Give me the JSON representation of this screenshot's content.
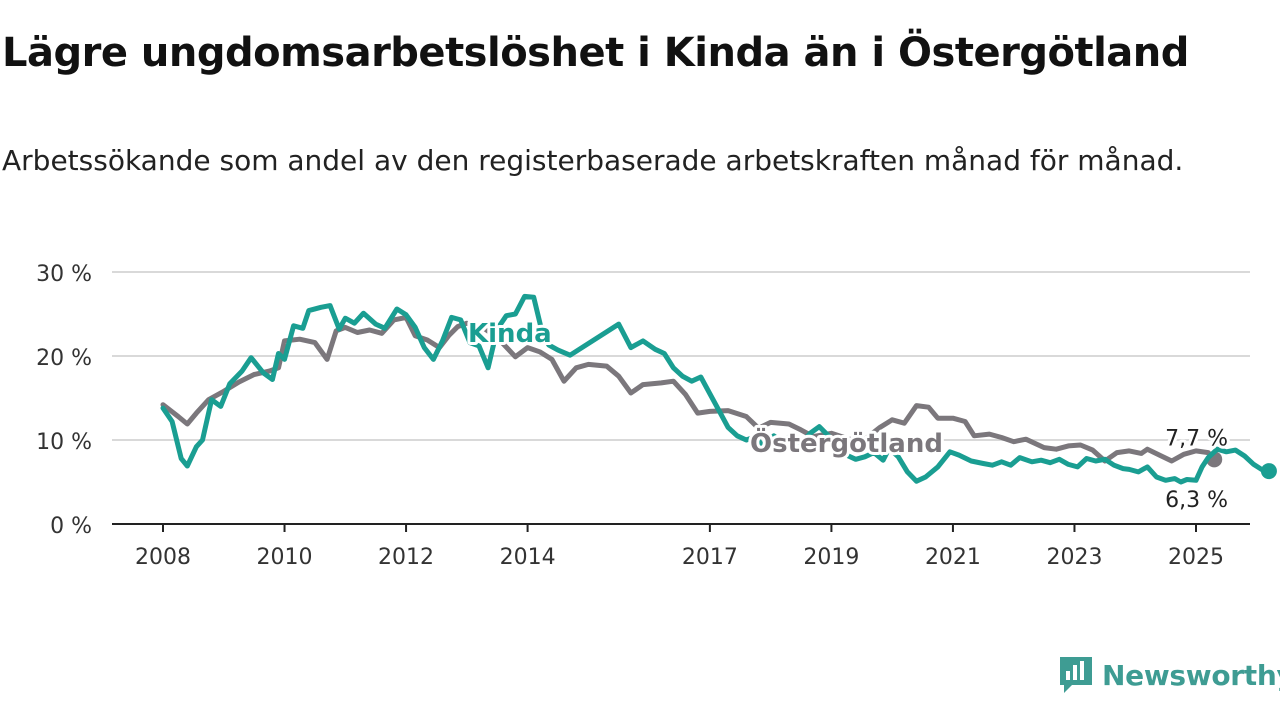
{
  "header": {
    "title": "Lägre ungdomsarbetslöshet i Kinda än i Östergötland",
    "subtitle": "Arbetssökande som andel av den registerbaserade arbetskraften månad för månad."
  },
  "brand": {
    "name": "Newsworthy",
    "icon": "chart-badge-icon",
    "color": "#3e9c93"
  },
  "chart_data": {
    "type": "line",
    "ylim": [
      0,
      30
    ],
    "xlim": [
      2007.85,
      2026.25
    ],
    "y_ticks": [
      0,
      10,
      20,
      30
    ],
    "y_tick_labels": [
      "0 %",
      "10 %",
      "20 %",
      "30 %"
    ],
    "x_ticks": [
      2008,
      2010,
      2012,
      2014,
      2017,
      2019,
      2021,
      2023,
      2025
    ],
    "x_tick_labels": [
      "2008",
      "2010",
      "2012",
      "2014",
      "2017",
      "2019",
      "2021",
      "2023",
      "2025"
    ],
    "grid": true,
    "series": [
      {
        "name": "Östergötland",
        "color": "#7b777c",
        "end_label": "7,7 %",
        "points": [
          [
            2008.0,
            14.2
          ],
          [
            2008.25,
            12.8
          ],
          [
            2008.4,
            11.9
          ],
          [
            2008.55,
            13.2
          ],
          [
            2008.75,
            14.8
          ],
          [
            2009.0,
            15.8
          ],
          [
            2009.25,
            16.9
          ],
          [
            2009.5,
            17.8
          ],
          [
            2009.75,
            18.2
          ],
          [
            2009.9,
            18.6
          ],
          [
            2010.0,
            21.8
          ],
          [
            2010.25,
            22.0
          ],
          [
            2010.5,
            21.6
          ],
          [
            2010.7,
            19.6
          ],
          [
            2010.85,
            23.0
          ],
          [
            2011.0,
            23.4
          ],
          [
            2011.2,
            22.8
          ],
          [
            2011.4,
            23.1
          ],
          [
            2011.6,
            22.7
          ],
          [
            2011.8,
            24.3
          ],
          [
            2012.0,
            24.6
          ],
          [
            2012.15,
            22.4
          ],
          [
            2012.35,
            21.9
          ],
          [
            2012.55,
            21.0
          ],
          [
            2012.7,
            22.4
          ],
          [
            2012.85,
            23.5
          ],
          [
            2013.0,
            23.9
          ],
          [
            2013.3,
            23.2
          ],
          [
            2013.5,
            22.2
          ],
          [
            2013.8,
            19.9
          ],
          [
            2014.0,
            21.0
          ],
          [
            2014.2,
            20.5
          ],
          [
            2014.4,
            19.6
          ],
          [
            2014.6,
            17.0
          ],
          [
            2014.8,
            18.6
          ],
          [
            2015.0,
            19.0
          ],
          [
            2015.3,
            18.8
          ],
          [
            2015.5,
            17.6
          ],
          [
            2015.7,
            15.6
          ],
          [
            2015.9,
            16.6
          ],
          [
            2016.2,
            16.8
          ],
          [
            2016.4,
            17.0
          ],
          [
            2016.6,
            15.4
          ],
          [
            2016.8,
            13.2
          ],
          [
            2017.0,
            13.4
          ],
          [
            2017.3,
            13.5
          ],
          [
            2017.6,
            12.8
          ],
          [
            2017.8,
            11.4
          ],
          [
            2018.0,
            12.1
          ],
          [
            2018.3,
            11.9
          ],
          [
            2018.5,
            11.2
          ],
          [
            2018.7,
            10.4
          ],
          [
            2019.0,
            10.8
          ],
          [
            2019.3,
            10.1
          ],
          [
            2019.5,
            9.8
          ],
          [
            2019.8,
            11.5
          ],
          [
            2020.0,
            12.4
          ],
          [
            2020.2,
            12.0
          ],
          [
            2020.4,
            14.1
          ],
          [
            2020.6,
            13.9
          ],
          [
            2020.75,
            12.6
          ],
          [
            2021.0,
            12.6
          ],
          [
            2021.2,
            12.2
          ],
          [
            2021.35,
            10.5
          ],
          [
            2021.6,
            10.7
          ],
          [
            2021.8,
            10.3
          ],
          [
            2022.0,
            9.8
          ],
          [
            2022.2,
            10.1
          ],
          [
            2022.5,
            9.1
          ],
          [
            2022.7,
            8.9
          ],
          [
            2022.9,
            9.3
          ],
          [
            2023.1,
            9.4
          ],
          [
            2023.3,
            8.8
          ],
          [
            2023.5,
            7.5
          ],
          [
            2023.7,
            8.5
          ],
          [
            2023.9,
            8.7
          ],
          [
            2024.1,
            8.4
          ],
          [
            2024.2,
            8.9
          ],
          [
            2024.4,
            8.2
          ],
          [
            2024.6,
            7.5
          ],
          [
            2024.8,
            8.3
          ],
          [
            2025.0,
            8.7
          ],
          [
            2025.2,
            8.5
          ],
          [
            2025.3,
            7.7
          ]
        ]
      },
      {
        "name": "Kinda",
        "color": "#1a9e92",
        "end_label": "6,3 %",
        "points": [
          [
            2008.0,
            13.8
          ],
          [
            2008.15,
            12.2
          ],
          [
            2008.3,
            7.8
          ],
          [
            2008.4,
            6.9
          ],
          [
            2008.55,
            9.2
          ],
          [
            2008.65,
            10.0
          ],
          [
            2008.8,
            14.8
          ],
          [
            2008.95,
            14.0
          ],
          [
            2009.1,
            16.7
          ],
          [
            2009.3,
            18.2
          ],
          [
            2009.45,
            19.8
          ],
          [
            2009.65,
            18.0
          ],
          [
            2009.8,
            17.2
          ],
          [
            2009.9,
            20.3
          ],
          [
            2010.0,
            19.6
          ],
          [
            2010.15,
            23.6
          ],
          [
            2010.3,
            23.3
          ],
          [
            2010.4,
            25.4
          ],
          [
            2010.6,
            25.8
          ],
          [
            2010.75,
            26.0
          ],
          [
            2010.9,
            23.2
          ],
          [
            2011.0,
            24.5
          ],
          [
            2011.15,
            23.9
          ],
          [
            2011.3,
            25.1
          ],
          [
            2011.5,
            23.8
          ],
          [
            2011.65,
            23.3
          ],
          [
            2011.85,
            25.6
          ],
          [
            2012.0,
            24.9
          ],
          [
            2012.15,
            23.4
          ],
          [
            2012.3,
            21.0
          ],
          [
            2012.45,
            19.6
          ],
          [
            2012.6,
            21.8
          ],
          [
            2012.75,
            24.6
          ],
          [
            2012.9,
            24.3
          ],
          [
            2013.05,
            21.6
          ],
          [
            2013.2,
            21.2
          ],
          [
            2013.35,
            18.6
          ],
          [
            2013.5,
            23.2
          ],
          [
            2013.65,
            24.8
          ],
          [
            2013.8,
            25.0
          ],
          [
            2013.95,
            27.1
          ],
          [
            2014.1,
            27.0
          ],
          [
            2014.25,
            22.5
          ],
          [
            2014.35,
            21.3
          ],
          [
            2014.5,
            20.7
          ],
          [
            2014.7,
            20.1
          ],
          [
            2015.5,
            23.8
          ],
          [
            2015.7,
            21.0
          ],
          [
            2015.9,
            21.8
          ],
          [
            2016.1,
            20.8
          ],
          [
            2016.25,
            20.3
          ],
          [
            2016.4,
            18.6
          ],
          [
            2016.55,
            17.6
          ],
          [
            2016.7,
            17.0
          ],
          [
            2016.85,
            17.5
          ],
          [
            2017.0,
            15.5
          ],
          [
            2017.15,
            13.5
          ],
          [
            2017.3,
            11.5
          ],
          [
            2017.45,
            10.5
          ],
          [
            2017.6,
            10.0
          ],
          [
            2017.75,
            10.4
          ],
          [
            2017.9,
            9.0
          ],
          [
            2018.05,
            10.5
          ],
          [
            2018.2,
            9.7
          ],
          [
            2018.35,
            10.7
          ],
          [
            2018.5,
            9.5
          ],
          [
            2018.65,
            10.8
          ],
          [
            2018.8,
            11.6
          ],
          [
            2018.95,
            10.5
          ],
          [
            2019.1,
            9.5
          ],
          [
            2019.25,
            8.2
          ],
          [
            2019.4,
            7.7
          ],
          [
            2019.55,
            8.0
          ],
          [
            2019.7,
            8.5
          ],
          [
            2019.85,
            7.6
          ],
          [
            2019.95,
            9.0
          ],
          [
            2020.1,
            8.0
          ],
          [
            2020.25,
            6.2
          ],
          [
            2020.4,
            5.1
          ],
          [
            2020.55,
            5.6
          ],
          [
            2020.75,
            6.8
          ],
          [
            2020.95,
            8.6
          ],
          [
            2021.1,
            8.2
          ],
          [
            2021.3,
            7.5
          ],
          [
            2021.5,
            7.2
          ],
          [
            2021.65,
            7.0
          ],
          [
            2021.8,
            7.4
          ],
          [
            2021.95,
            7.0
          ],
          [
            2022.1,
            7.9
          ],
          [
            2022.3,
            7.4
          ],
          [
            2022.45,
            7.6
          ],
          [
            2022.6,
            7.3
          ],
          [
            2022.75,
            7.7
          ],
          [
            2022.9,
            7.1
          ],
          [
            2023.05,
            6.8
          ],
          [
            2023.2,
            7.8
          ],
          [
            2023.35,
            7.5
          ],
          [
            2023.5,
            7.7
          ],
          [
            2023.65,
            7.0
          ],
          [
            2023.8,
            6.6
          ],
          [
            2023.9,
            6.5
          ],
          [
            2024.05,
            6.2
          ],
          [
            2024.2,
            6.8
          ],
          [
            2024.35,
            5.6
          ],
          [
            2024.5,
            5.2
          ],
          [
            2024.65,
            5.4
          ],
          [
            2024.75,
            5.0
          ],
          [
            2024.85,
            5.3
          ],
          [
            2025.0,
            5.2
          ],
          [
            2025.1,
            6.8
          ],
          [
            2025.2,
            7.9
          ],
          [
            2025.35,
            8.9
          ],
          [
            2025.5,
            8.6
          ],
          [
            2025.65,
            8.8
          ],
          [
            2025.8,
            8.1
          ],
          [
            2025.95,
            7.1
          ],
          [
            2026.1,
            6.4
          ],
          [
            2026.2,
            6.3
          ]
        ]
      }
    ]
  }
}
